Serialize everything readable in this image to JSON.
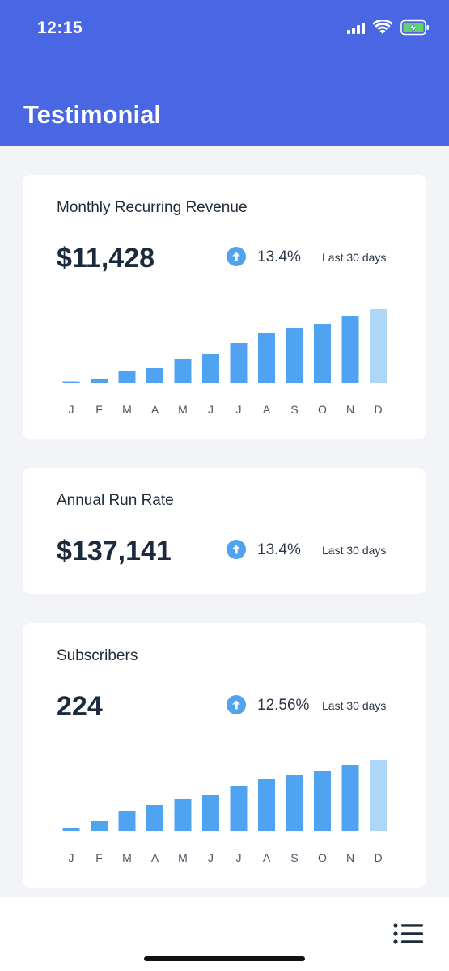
{
  "status_bar": {
    "time": "12:15",
    "icons": [
      "signal-icon",
      "wifi-icon",
      "battery-charging-icon"
    ]
  },
  "header": {
    "title": "Testimonial",
    "background_color": "#4a67e3"
  },
  "cards": [
    {
      "title": "Monthly Recurring Revenue",
      "value": "$11,428",
      "change": "13.4%",
      "period": "Last 30 days"
    },
    {
      "title": "Annual Run Rate",
      "value": "$137,141",
      "change": "13.4%",
      "period": "Last 30 days"
    },
    {
      "title": "Subscribers",
      "value": "224",
      "change": "12.56%",
      "period": "Last 30 days"
    }
  ],
  "colors": {
    "bar": "#4fa3f1",
    "bar_current": "#aed6f8",
    "trend_up": "#4fa3f1"
  },
  "chart_data": [
    {
      "type": "bar",
      "categories": [
        "J",
        "F",
        "M",
        "A",
        "M",
        "J",
        "J",
        "A",
        "S",
        "O",
        "N",
        "D"
      ],
      "values": [
        1,
        5,
        14,
        18,
        29,
        35,
        49,
        62,
        68,
        73,
        83,
        91
      ],
      "highlight_last": true,
      "title": "",
      "xlabel": "",
      "ylabel": "",
      "ylim": [
        0,
        100
      ],
      "grid": false
    },
    {
      "type": "bar",
      "categories": [
        "J",
        "F",
        "M",
        "A",
        "M",
        "J",
        "J",
        "A",
        "S",
        "O",
        "N",
        "D"
      ],
      "values": [
        4,
        12,
        25,
        32,
        39,
        45,
        56,
        64,
        69,
        74,
        81,
        88
      ],
      "highlight_last": true,
      "title": "",
      "xlabel": "",
      "ylabel": "",
      "ylim": [
        0,
        100
      ],
      "grid": false
    }
  ],
  "bottom_bar": {
    "menu_icon": "menu-list-icon"
  }
}
